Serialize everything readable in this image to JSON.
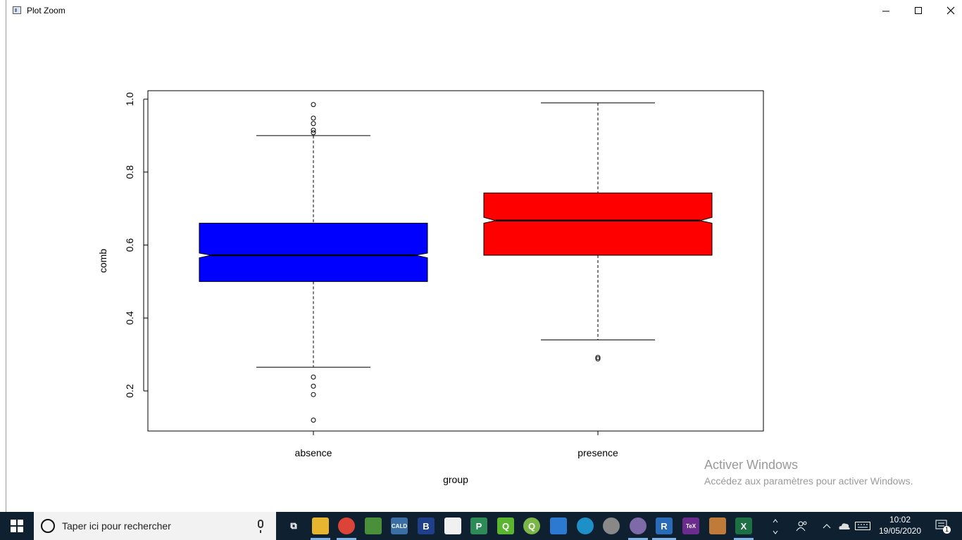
{
  "window": {
    "title": "Plot Zoom",
    "minimize": "—",
    "maximize": "☐",
    "close": "✕"
  },
  "chart_data": {
    "type": "boxplot",
    "xlabel": "group",
    "ylabel": "comb",
    "ylim": [
      0.1,
      1.02
    ],
    "y_ticks": [
      "0.2",
      "0.4",
      "0.6",
      "0.8",
      "1.0"
    ],
    "notched": true,
    "categories": [
      "absence",
      "presence"
    ],
    "boxes": [
      {
        "name": "absence",
        "color": "#0000ff",
        "whisker_low": 0.265,
        "q1": 0.5,
        "median": 0.572,
        "q3": 0.66,
        "whisker_high": 0.9,
        "notch_low": 0.565,
        "notch_high": 0.578,
        "outliers": [
          0.985,
          0.948,
          0.933,
          0.915,
          0.908,
          0.238,
          0.213,
          0.19,
          0.12
        ]
      },
      {
        "name": "presence",
        "color": "#ff0000",
        "whisker_low": 0.34,
        "q1": 0.572,
        "median": 0.667,
        "q3": 0.743,
        "whisker_high": 0.99,
        "notch_low": 0.66,
        "notch_high": 0.676,
        "outliers": [
          0.292,
          0.288
        ]
      }
    ]
  },
  "watermark": {
    "line1": "Activer Windows",
    "line2": "Accédez aux paramètres pour activer Windows."
  },
  "taskbar": {
    "search_placeholder": "Taper ici pour rechercher",
    "apps": [
      {
        "name": "task-view-icon",
        "label": "⧉",
        "color": "transparent"
      },
      {
        "name": "file-explorer-icon",
        "label": "",
        "color": "#e8b531"
      },
      {
        "name": "chrome-icon",
        "label": "",
        "color": "#db4437"
      },
      {
        "name": "app-chart-icon",
        "label": "",
        "color": "#4a8f3a"
      },
      {
        "name": "caldi-icon",
        "label": "CALD",
        "color": "#3a6ea5"
      },
      {
        "name": "b-app-icon",
        "label": "B",
        "color": "#1f3f8a"
      },
      {
        "name": "document-icon",
        "label": "",
        "color": "#f0f0f0"
      },
      {
        "name": "p-app-icon",
        "label": "P",
        "color": "#2e8b57"
      },
      {
        "name": "q-app-icon",
        "label": "Q",
        "color": "#5cb531"
      },
      {
        "name": "qgis-icon",
        "label": "Q",
        "color": "#7ab648"
      },
      {
        "name": "window-app-icon",
        "label": "",
        "color": "#2b79d1"
      },
      {
        "name": "magnifier-app-icon",
        "label": "",
        "color": "#1e90c8"
      },
      {
        "name": "sphere-app-icon",
        "label": "",
        "color": "#888888"
      },
      {
        "name": "cat-app-icon",
        "label": "",
        "color": "#7e6aa8"
      },
      {
        "name": "r-app-icon",
        "label": "R",
        "color": "#2a6bb8"
      },
      {
        "name": "tex-app-icon",
        "label": "TeX",
        "color": "#6b2b8f"
      },
      {
        "name": "paint-app-icon",
        "label": "",
        "color": "#c07a3a"
      },
      {
        "name": "excel-icon",
        "label": "X",
        "color": "#1d7044"
      }
    ],
    "time": "10:02",
    "date": "19/05/2020",
    "notifications": "1"
  }
}
